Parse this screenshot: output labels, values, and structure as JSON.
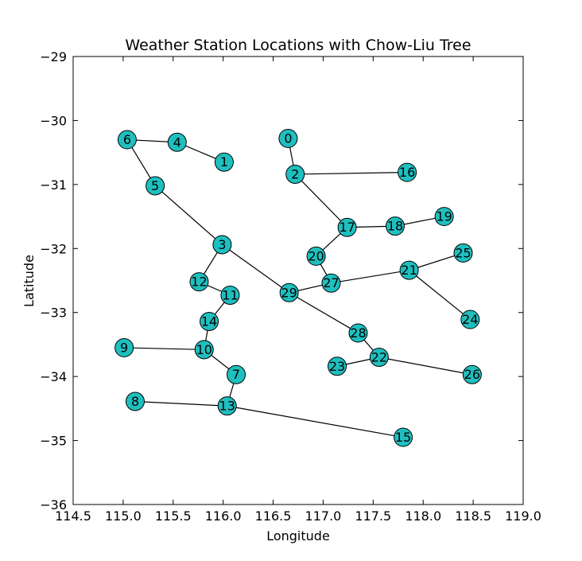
{
  "chart_data": {
    "type": "scatter",
    "title": "Weather Station Locations with Chow-Liu Tree",
    "xlabel": "Longitude",
    "ylabel": "Latitude",
    "xlim": [
      114.5,
      119.0
    ],
    "ylim": [
      -36,
      -29
    ],
    "xticks": [
      "114.5",
      "115.0",
      "115.5",
      "116.0",
      "116.5",
      "117.0",
      "117.5",
      "118.0",
      "118.5",
      "119.0"
    ],
    "yticks": [
      "−29",
      "−30",
      "−31",
      "−32",
      "−33",
      "−34",
      "−35",
      "−36"
    ],
    "xtick_values": [
      114.5,
      115.0,
      115.5,
      116.0,
      116.5,
      117.0,
      117.5,
      118.0,
      118.5,
      119.0
    ],
    "ytick_values": [
      -29,
      -30,
      -31,
      -32,
      -33,
      -34,
      -35,
      -36
    ],
    "grid": false,
    "marker_color": "#1fbfbf",
    "points": [
      {
        "id": "0",
        "x": 116.65,
        "y": -30.28
      },
      {
        "id": "1",
        "x": 116.01,
        "y": -30.65
      },
      {
        "id": "2",
        "x": 116.72,
        "y": -30.84
      },
      {
        "id": "3",
        "x": 115.99,
        "y": -31.94
      },
      {
        "id": "4",
        "x": 115.54,
        "y": -30.34
      },
      {
        "id": "5",
        "x": 115.32,
        "y": -31.02
      },
      {
        "id": "6",
        "x": 115.04,
        "y": -30.3
      },
      {
        "id": "7",
        "x": 116.13,
        "y": -33.97
      },
      {
        "id": "8",
        "x": 115.12,
        "y": -34.39
      },
      {
        "id": "9",
        "x": 115.01,
        "y": -33.55
      },
      {
        "id": "10",
        "x": 115.81,
        "y": -33.58
      },
      {
        "id": "11",
        "x": 116.07,
        "y": -32.73
      },
      {
        "id": "12",
        "x": 115.76,
        "y": -32.52
      },
      {
        "id": "13",
        "x": 116.04,
        "y": -34.46
      },
      {
        "id": "14",
        "x": 115.86,
        "y": -33.14
      },
      {
        "id": "15",
        "x": 117.8,
        "y": -34.95
      },
      {
        "id": "16",
        "x": 117.84,
        "y": -30.81
      },
      {
        "id": "17",
        "x": 117.24,
        "y": -31.67
      },
      {
        "id": "18",
        "x": 117.72,
        "y": -31.65
      },
      {
        "id": "19",
        "x": 118.21,
        "y": -31.5
      },
      {
        "id": "20",
        "x": 116.93,
        "y": -32.12
      },
      {
        "id": "21",
        "x": 117.86,
        "y": -32.34
      },
      {
        "id": "22",
        "x": 117.56,
        "y": -33.7
      },
      {
        "id": "23",
        "x": 117.14,
        "y": -33.84
      },
      {
        "id": "24",
        "x": 118.47,
        "y": -33.11
      },
      {
        "id": "25",
        "x": 118.4,
        "y": -32.07
      },
      {
        "id": "26",
        "x": 118.49,
        "y": -33.97
      },
      {
        "id": "27",
        "x": 117.08,
        "y": -32.54
      },
      {
        "id": "28",
        "x": 117.35,
        "y": -33.32
      },
      {
        "id": "29",
        "x": 116.66,
        "y": -32.69
      }
    ],
    "edges": [
      [
        "0",
        "2"
      ],
      [
        "2",
        "16"
      ],
      [
        "2",
        "17"
      ],
      [
        "17",
        "18"
      ],
      [
        "18",
        "19"
      ],
      [
        "17",
        "20"
      ],
      [
        "20",
        "27"
      ],
      [
        "27",
        "21"
      ],
      [
        "21",
        "25"
      ],
      [
        "21",
        "24"
      ],
      [
        "27",
        "29"
      ],
      [
        "29",
        "3"
      ],
      [
        "29",
        "28"
      ],
      [
        "28",
        "22"
      ],
      [
        "22",
        "23"
      ],
      [
        "22",
        "26"
      ],
      [
        "3",
        "5"
      ],
      [
        "5",
        "6"
      ],
      [
        "6",
        "4"
      ],
      [
        "4",
        "1"
      ],
      [
        "3",
        "12"
      ],
      [
        "12",
        "11"
      ],
      [
        "11",
        "14"
      ],
      [
        "14",
        "10"
      ],
      [
        "10",
        "9"
      ],
      [
        "10",
        "7"
      ],
      [
        "7",
        "13"
      ],
      [
        "13",
        "8"
      ],
      [
        "13",
        "15"
      ]
    ]
  }
}
